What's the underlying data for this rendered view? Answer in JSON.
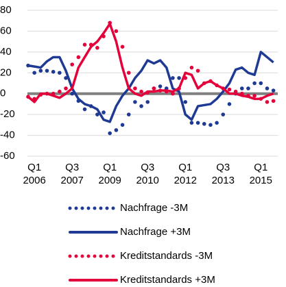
{
  "chart_data": {
    "type": "line",
    "categories": [
      null,
      "Q1 2006",
      null,
      null,
      null,
      null,
      null,
      "Q3 2007",
      null,
      null,
      null,
      null,
      null,
      "Q1 2009",
      null,
      null,
      null,
      null,
      null,
      "Q3 2010",
      null,
      null,
      null,
      null,
      null,
      "Q1 2012",
      null,
      null,
      null,
      null,
      null,
      "Q3 2013",
      null,
      null,
      null,
      null,
      null,
      "Q1 2015",
      null,
      null
    ],
    "series": [
      {
        "name": "Nachfrage -3M",
        "color": "#1f3a93",
        "style": "dotted",
        "values": [
          27,
          20,
          22,
          22,
          21,
          20,
          15,
          0,
          -7,
          -15,
          -12,
          -20,
          -18,
          -38,
          -35,
          -30,
          -20,
          -8,
          -12,
          -8,
          5,
          7,
          5,
          15,
          15,
          -8,
          -28,
          -28,
          -29,
          -30,
          -28,
          -20,
          -10,
          0,
          5,
          5,
          10,
          10,
          5,
          3
        ]
      },
      {
        "name": "Nachfrage +3M",
        "color": "#1f3a93",
        "style": "solid",
        "values": [
          27,
          26,
          25,
          31,
          35,
          35,
          22,
          5,
          -5,
          -10,
          -12,
          -15,
          -25,
          -27,
          -12,
          -2,
          5,
          15,
          22,
          32,
          29,
          32,
          25,
          5,
          2,
          -20,
          -25,
          -12,
          -11,
          -10,
          -5,
          2,
          10,
          23,
          25,
          20,
          18,
          40,
          35,
          30
        ]
      },
      {
        "name": "Kreditstandards -3M",
        "color": "#e4003a",
        "style": "dotted",
        "values": [
          -3,
          -5,
          -1,
          0,
          0,
          2,
          5,
          28,
          35,
          47,
          47,
          44,
          55,
          68,
          60,
          45,
          20,
          5,
          2,
          1,
          5,
          3,
          2,
          0,
          5,
          15,
          25,
          22,
          10,
          12,
          8,
          5,
          4,
          2,
          0,
          -2,
          -2,
          -5,
          -8,
          -7
        ]
      },
      {
        "name": "Kreditstandards +3M",
        "color": "#e4003a",
        "style": "solid",
        "values": [
          -3,
          -8,
          0,
          0,
          -2,
          -4,
          0,
          5,
          25,
          35,
          45,
          50,
          58,
          67,
          50,
          25,
          5,
          0,
          -2,
          2,
          2,
          3,
          3,
          2,
          5,
          20,
          18,
          5,
          10,
          12,
          8,
          5,
          0,
          0,
          -2,
          -3,
          -5,
          -5,
          -2,
          0
        ]
      }
    ],
    "ylim": [
      -60,
      80
    ],
    "yticks": [
      -60,
      -40,
      -20,
      0,
      20,
      40,
      60,
      80
    ],
    "grid": true
  }
}
